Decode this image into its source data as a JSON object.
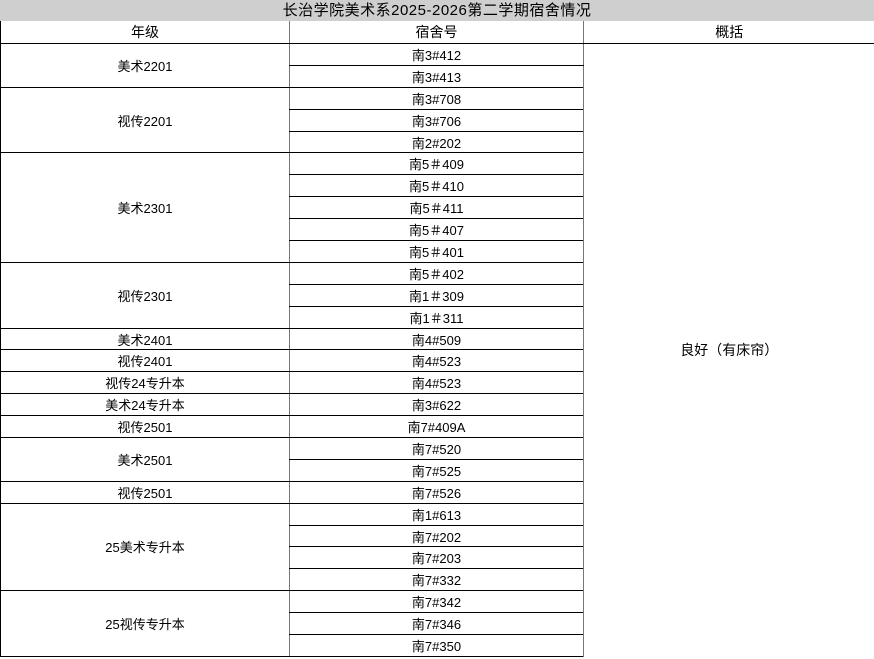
{
  "title": "长治学院美术系2025-2026第二学期宿舍情况",
  "columns": {
    "grade": "年级",
    "dorm": "宿舍号",
    "summary": "概括"
  },
  "summary_text": "良好（有床帘）",
  "groups": [
    {
      "grade": "美术2201",
      "dorms": [
        "南3#412",
        "南3#413"
      ]
    },
    {
      "grade": "视传2201",
      "dorms": [
        "南3#708",
        "南3#706",
        "南2#202"
      ]
    },
    {
      "grade": "美术2301",
      "dorms": [
        "南5＃409",
        "南5＃410",
        "南5＃411",
        "南5＃407",
        "南5＃401"
      ]
    },
    {
      "grade": "视传2301",
      "dorms": [
        "南5＃402",
        "南1＃309",
        "南1＃311"
      ]
    },
    {
      "grade": "美术2401",
      "dorms": [
        "南4#509"
      ]
    },
    {
      "grade": "视传2401",
      "dorms": [
        "南4#523"
      ]
    },
    {
      "grade": "视传24专升本",
      "dorms": [
        "南4#523"
      ]
    },
    {
      "grade": "美术24专升本",
      "dorms": [
        "南3#622"
      ]
    },
    {
      "grade": "视传2501",
      "dorms": [
        "南7#409A"
      ]
    },
    {
      "grade": "美术2501",
      "dorms": [
        "南7#520",
        "南7#525"
      ]
    },
    {
      "grade": "视传2501",
      "dorms": [
        "南7#526"
      ]
    },
    {
      "grade": "25美术专升本",
      "dorms": [
        "南1#613",
        "南7#202",
        "南7#203",
        "南7#332"
      ]
    },
    {
      "grade": "25视传专升本",
      "dorms": [
        "南7#342",
        "南7#346",
        "南7#350"
      ]
    }
  ],
  "colors": {
    "title_background": "#CFCFCF",
    "horizontal_border": "#000000",
    "vertical_border": "#777777",
    "text": "#000000"
  }
}
